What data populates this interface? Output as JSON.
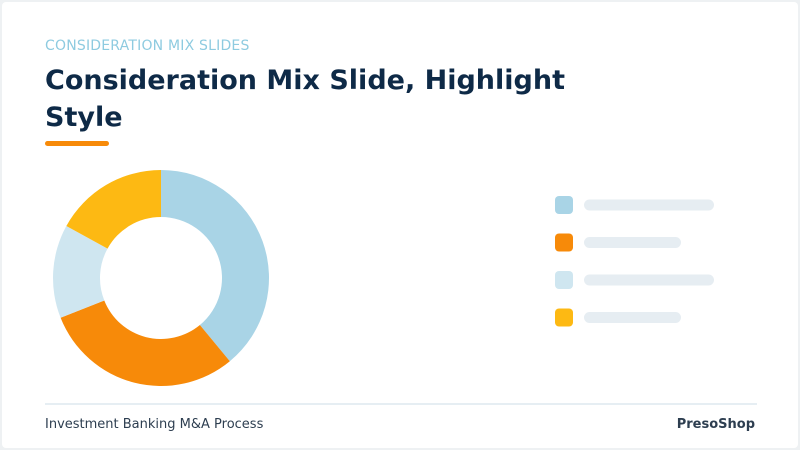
{
  "header": {
    "eyebrow": "CONSIDERATION MIX SLIDES",
    "title": "Consideration Mix Slide, Highlight Style"
  },
  "chart_data": {
    "type": "donut",
    "categories": [
      null,
      null,
      null,
      null
    ],
    "values": [
      39,
      30,
      14,
      17
    ],
    "colors": [
      "#a9d4e6",
      "#f78a09",
      "#cfe6f0",
      "#fdb913"
    ]
  },
  "footer": {
    "left": "Investment Banking M&A Process",
    "right": "PresoShop"
  }
}
